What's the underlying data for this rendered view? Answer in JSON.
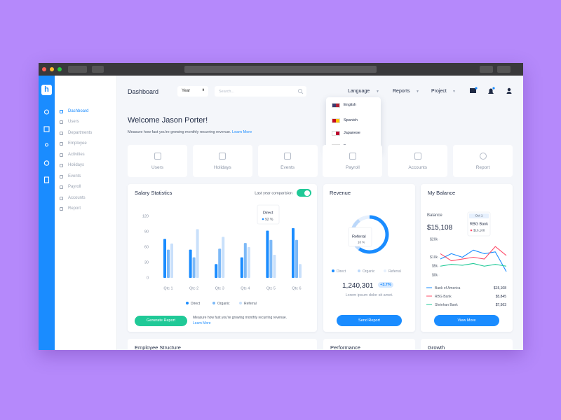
{
  "app": {
    "logo": "h"
  },
  "header": {
    "title": "Dashboard",
    "year_select": "Year",
    "search_placeholder": "Search...",
    "nav": [
      "Language",
      "Reports",
      "Project"
    ]
  },
  "language_menu": [
    "English",
    "Spanish",
    "Japanese",
    "France"
  ],
  "sidebar": [
    "Dashboard",
    "Users",
    "Departments",
    "Employee",
    "Activities",
    "Holidays",
    "Events",
    "Payroll",
    "Accounts",
    "Report"
  ],
  "welcome": {
    "title": "Welcome Jason Porter!",
    "text": "Measure how fast you're growing monthly recurring revenue.",
    "link": "Learn More"
  },
  "quick_links": [
    "Users",
    "Holidays",
    "Events",
    "Payroll",
    "Accounts",
    "Report"
  ],
  "chart_data": [
    {
      "type": "bar",
      "title": "Salary Statistics",
      "toggle_label": "Last year comparision",
      "categories": [
        "Qtc 1",
        "Qtc 2",
        "Qtc 3",
        "Qtc 4",
        "Qtc 5",
        "Qtc 6"
      ],
      "series": [
        {
          "name": "Direct",
          "color": "#1a8cff",
          "values": [
            76,
            55,
            27,
            40,
            92,
            97
          ]
        },
        {
          "name": "Organic",
          "color": "#7db9f7",
          "values": [
            55,
            40,
            57,
            68,
            74,
            74
          ]
        },
        {
          "name": "Referral",
          "color": "#c9e0fb",
          "values": [
            67,
            95,
            80,
            60,
            45,
            27
          ]
        }
      ],
      "ylim": [
        0,
        120
      ],
      "yticks": [
        0,
        30,
        60,
        90,
        120
      ],
      "grid": false,
      "tooltip": {
        "name": "Direct",
        "value_label": "92 %"
      }
    },
    {
      "type": "pie",
      "title": "Revenue",
      "categories": [
        "Direct",
        "Organic",
        "Referral"
      ],
      "values": [
        60,
        30,
        10
      ],
      "colors": [
        "#1a8cff",
        "#bcd8fa",
        "#e6f0fd"
      ],
      "tooltip": {
        "name": "Referral",
        "value_label": "10 %"
      }
    },
    {
      "type": "line",
      "title": "My Balance",
      "categories": [
        null,
        null,
        null,
        null,
        null,
        null,
        null
      ],
      "series": [
        {
          "name": "Bank of America",
          "color": "#1a8cff",
          "values": [
            9000,
            12000,
            10000,
            14000,
            12000,
            13000,
            2000
          ],
          "total": "$15,108"
        },
        {
          "name": "RBG Bank",
          "color": "#ff4d6a",
          "values": [
            12000,
            8000,
            9000,
            10000,
            9000,
            16000,
            11000
          ],
          "total": "$5,845"
        },
        {
          "name": "Shrinhan Bank",
          "color": "#20c997",
          "values": [
            5000,
            6000,
            5500,
            6500,
            5000,
            6000,
            5000
          ],
          "total": "$7,563"
        }
      ],
      "ylim": [
        0,
        20000
      ],
      "yticks": [
        {
          "value": 0,
          "label": "$0k"
        },
        {
          "value": 5000,
          "label": "$5k"
        },
        {
          "value": 10000,
          "label": "$10k"
        },
        {
          "value": 20000,
          "label": "$20k"
        }
      ],
      "tooltip": {
        "title": "Oct 1",
        "name": "RBG Bank",
        "value": "$16,108"
      }
    }
  ],
  "salary_footer": {
    "button": "Generate Report",
    "text": "Measure how fast you're growing monthly recurring revenue.",
    "link": "Learn More"
  },
  "revenue_footer": {
    "total": "1,240,301",
    "change": "+3.7%",
    "text": "Lorem ipsum dolor sit amet.",
    "button": "Send Report"
  },
  "balance_info": {
    "label": "Balance",
    "amount": "$15,108",
    "button": "View More"
  },
  "bottom_cards": [
    "Employee Structure",
    "Performance",
    "Growth"
  ]
}
